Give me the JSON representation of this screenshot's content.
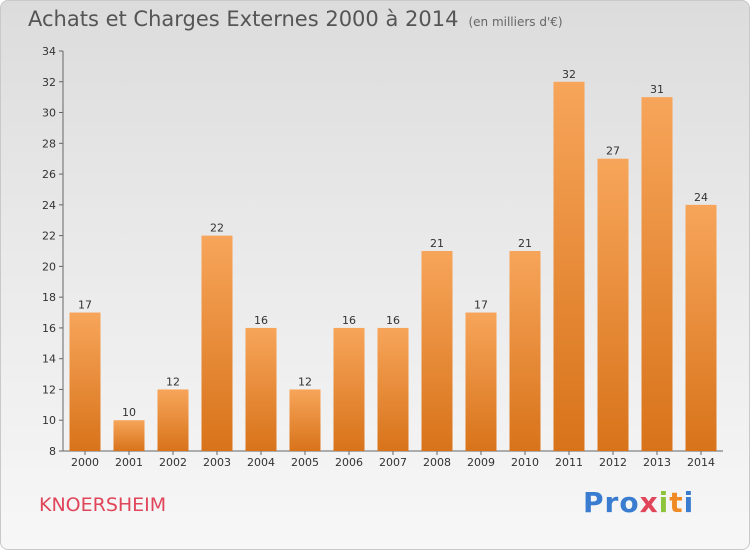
{
  "header": {
    "title": "Achats et Charges Externes 2000 à 2014",
    "unit": "(en milliers d'€)"
  },
  "footer": {
    "city": "KNOERSHEIM",
    "logo": "Proxiti"
  },
  "colors": {
    "bar_top": "#f7a55a",
    "bar_bottom": "#d8731a",
    "city": "#e0455a"
  },
  "chart_data": {
    "type": "bar",
    "title": "Achats et Charges Externes 2000 à 2014",
    "subtitle": "(en milliers d'€)",
    "categories": [
      "2000",
      "2001",
      "2002",
      "2003",
      "2004",
      "2005",
      "2006",
      "2007",
      "2008",
      "2009",
      "2010",
      "2011",
      "2012",
      "2013",
      "2014"
    ],
    "values": [
      17,
      10,
      12,
      22,
      16,
      12,
      16,
      16,
      21,
      17,
      21,
      32,
      27,
      31,
      24
    ],
    "ylim": [
      8,
      34
    ],
    "yticks": [
      8,
      10,
      12,
      14,
      16,
      18,
      20,
      22,
      24,
      26,
      28,
      30,
      32,
      34
    ],
    "grid": false,
    "legend": "none"
  }
}
